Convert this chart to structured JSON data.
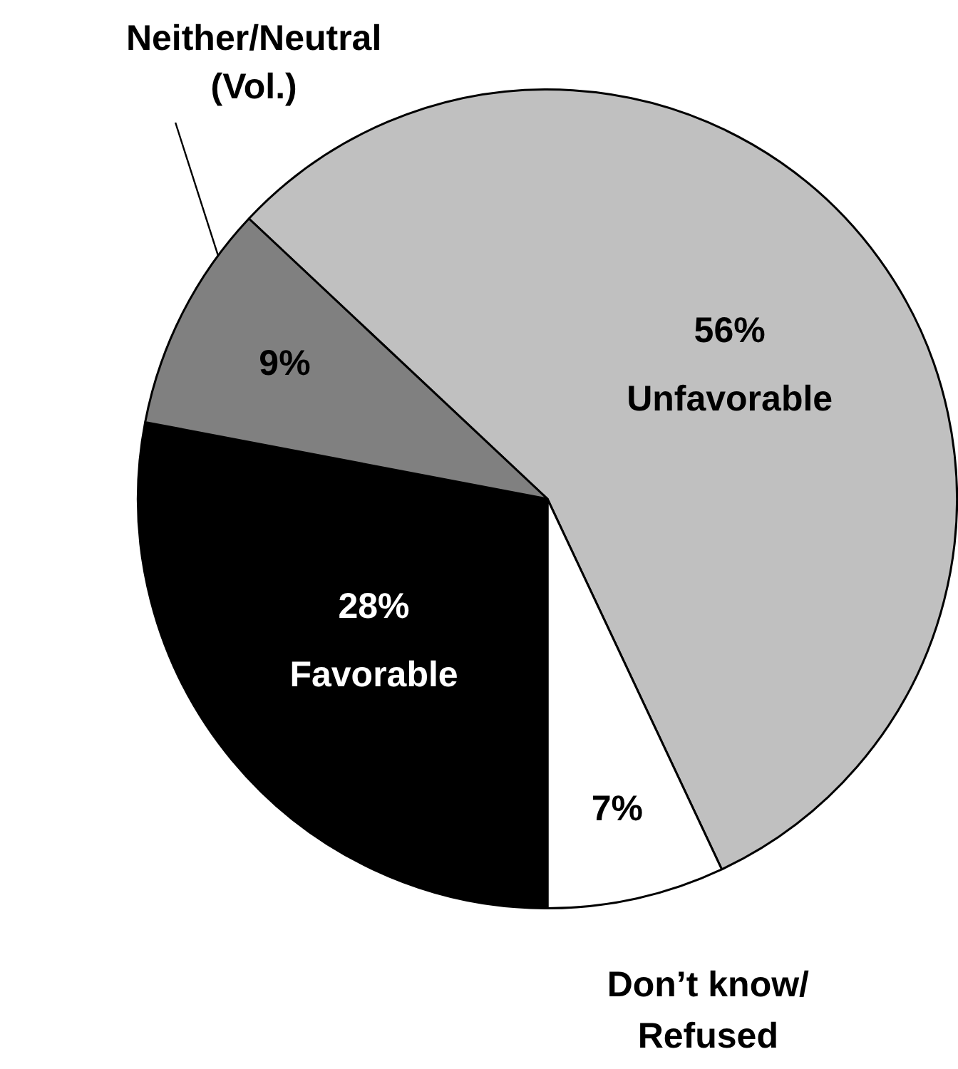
{
  "chart_data": {
    "type": "pie",
    "categories": [
      "Unfavorable",
      "Don’t know/ Refused",
      "Favorable",
      "Neither/Neutral (Vol.)"
    ],
    "values": [
      56,
      7,
      28,
      9
    ],
    "colors": [
      "#c0c0c0",
      "#ffffff",
      "#000000",
      "#808080"
    ],
    "value_labels": [
      "56%",
      "7%",
      "28%",
      "9%"
    ],
    "legend": false
  }
}
